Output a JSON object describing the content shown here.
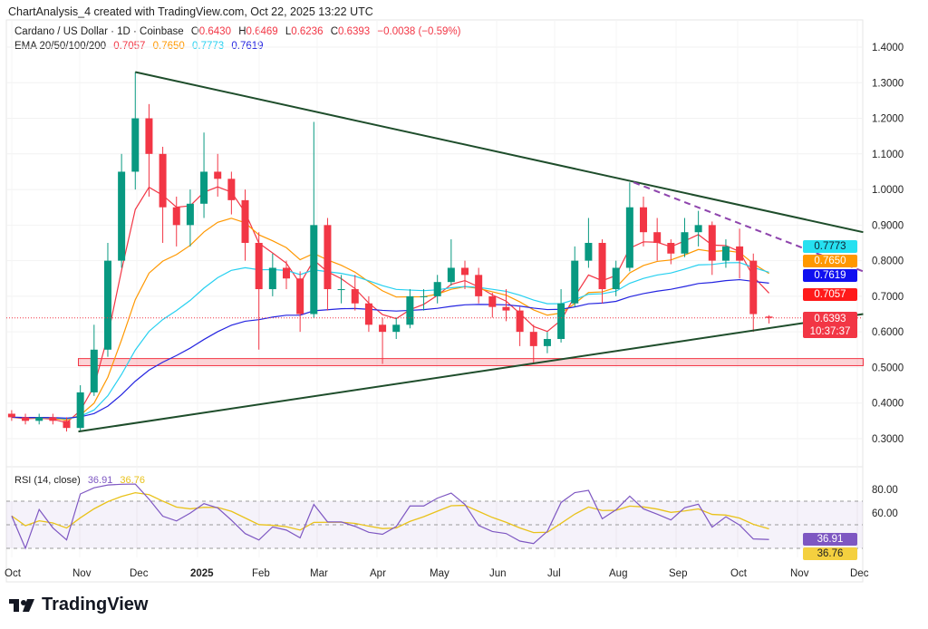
{
  "caption": "ChartAnalysis_4 created with TradingView.com, Oct 22, 2025 13:22 UTC",
  "legend": {
    "symbol": "Cardano / US Dollar · 1D · Coinbase",
    "o_label": "O",
    "o": "0.6430",
    "h_label": "H",
    "h": "0.6469",
    "l_label": "L",
    "l": "0.6236",
    "c_label": "C",
    "c": "0.6393",
    "change": "−0.0038 (−0.59%)",
    "ema_label": "EMA 20/50/100/200",
    "ema20": "0.7057",
    "ema50": "0.7650",
    "ema100": "0.7773",
    "ema200": "0.7619"
  },
  "badges": {
    "ema100": "0.7773",
    "ema50": "0.7650",
    "ema200": "0.7619",
    "ema20": "0.7057",
    "price": "0.6393",
    "countdown": "10:37:37",
    "rsi": "36.91",
    "rsi_ma": "36.76"
  },
  "rsi_legend": {
    "label": "RSI (14, close)",
    "value": "36.91",
    "ma": "36.76"
  },
  "colors": {
    "up": "#089981",
    "down": "#f23645",
    "ema20": "#f23645",
    "ema50": "#ff9800",
    "ema100": "#26d0f0",
    "ema200": "#2424e0",
    "rsi": "#7e57c2",
    "rsi_ma": "#e9c21a",
    "trend": "#1e4d2b",
    "dashed": "#8e44ad",
    "zone": "#f23645"
  },
  "footer": {
    "brand": "TradingView"
  },
  "chart_data": [
    {
      "type": "candlestick",
      "title": "Cardano / US Dollar · 1D · Coinbase",
      "ylim": [
        0.3,
        1.4
      ],
      "y_ticks": [
        "1.4000",
        "1.3000",
        "1.2000",
        "1.1000",
        "1.0000",
        "0.9000",
        "0.8000",
        "0.7000",
        "0.6000",
        "0.5000",
        "0.4000",
        "0.3000"
      ],
      "x_ticks": [
        "Oct",
        "Nov",
        "Dec",
        "2025",
        "Feb",
        "Mar",
        "Apr",
        "May",
        "Jun",
        "Jul",
        "Aug",
        "Sep",
        "Oct",
        "Nov",
        "Dec"
      ],
      "grid": true,
      "candles": [
        [
          "2024-10-01",
          0.37,
          0.38,
          0.35,
          0.36
        ],
        [
          "2024-10-08",
          0.36,
          0.37,
          0.34,
          0.35
        ],
        [
          "2024-10-15",
          0.35,
          0.37,
          0.34,
          0.36
        ],
        [
          "2024-10-22",
          0.36,
          0.37,
          0.34,
          0.35
        ],
        [
          "2024-10-29",
          0.35,
          0.36,
          0.32,
          0.33
        ],
        [
          "2024-11-05",
          0.33,
          0.45,
          0.32,
          0.43
        ],
        [
          "2024-11-12",
          0.43,
          0.62,
          0.42,
          0.55
        ],
        [
          "2024-11-19",
          0.55,
          0.85,
          0.53,
          0.8
        ],
        [
          "2024-11-26",
          0.8,
          1.1,
          0.78,
          1.05
        ],
        [
          "2024-12-03",
          1.05,
          1.33,
          1.0,
          1.2
        ],
        [
          "2024-12-10",
          1.2,
          1.24,
          0.98,
          1.1
        ],
        [
          "2024-12-17",
          1.1,
          1.12,
          0.85,
          0.95
        ],
        [
          "2024-12-24",
          0.95,
          0.98,
          0.84,
          0.9
        ],
        [
          "2024-12-31",
          0.9,
          1.0,
          0.84,
          0.96
        ],
        [
          "2025-01-07",
          0.96,
          1.16,
          0.92,
          1.05
        ],
        [
          "2025-01-14",
          1.05,
          1.1,
          0.98,
          1.03
        ],
        [
          "2025-01-21",
          1.03,
          1.05,
          0.93,
          0.97
        ],
        [
          "2025-01-28",
          0.97,
          1.0,
          0.8,
          0.85
        ],
        [
          "2025-02-04",
          0.85,
          0.88,
          0.55,
          0.72
        ],
        [
          "2025-02-11",
          0.72,
          0.82,
          0.7,
          0.78
        ],
        [
          "2025-02-18",
          0.78,
          0.8,
          0.72,
          0.75
        ],
        [
          "2025-02-25",
          0.75,
          0.77,
          0.6,
          0.65
        ],
        [
          "2025-03-04",
          0.65,
          1.19,
          0.64,
          0.9
        ],
        [
          "2025-03-11",
          0.9,
          0.92,
          0.66,
          0.72
        ],
        [
          "2025-03-18",
          0.72,
          0.76,
          0.68,
          0.72
        ],
        [
          "2025-03-25",
          0.72,
          0.76,
          0.66,
          0.68
        ],
        [
          "2025-04-01",
          0.68,
          0.7,
          0.6,
          0.62
        ],
        [
          "2025-04-08",
          0.62,
          0.64,
          0.51,
          0.6
        ],
        [
          "2025-04-15",
          0.6,
          0.64,
          0.58,
          0.62
        ],
        [
          "2025-04-22",
          0.62,
          0.72,
          0.61,
          0.7
        ],
        [
          "2025-04-29",
          0.7,
          0.72,
          0.66,
          0.7
        ],
        [
          "2025-05-06",
          0.7,
          0.76,
          0.68,
          0.74
        ],
        [
          "2025-05-13",
          0.74,
          0.86,
          0.73,
          0.78
        ],
        [
          "2025-05-20",
          0.78,
          0.8,
          0.72,
          0.76
        ],
        [
          "2025-05-27",
          0.76,
          0.78,
          0.68,
          0.7
        ],
        [
          "2025-06-03",
          0.7,
          0.71,
          0.64,
          0.67
        ],
        [
          "2025-06-10",
          0.67,
          0.72,
          0.63,
          0.66
        ],
        [
          "2025-06-17",
          0.66,
          0.67,
          0.56,
          0.6
        ],
        [
          "2025-06-24",
          0.6,
          0.62,
          0.51,
          0.56
        ],
        [
          "2025-07-01",
          0.56,
          0.6,
          0.54,
          0.58
        ],
        [
          "2025-07-08",
          0.58,
          0.72,
          0.57,
          0.68
        ],
        [
          "2025-07-15",
          0.68,
          0.84,
          0.67,
          0.8
        ],
        [
          "2025-07-22",
          0.8,
          0.92,
          0.78,
          0.85
        ],
        [
          "2025-07-29",
          0.85,
          0.86,
          0.68,
          0.72
        ],
        [
          "2025-08-05",
          0.72,
          0.8,
          0.7,
          0.78
        ],
        [
          "2025-08-12",
          0.78,
          1.02,
          0.77,
          0.95
        ],
        [
          "2025-08-19",
          0.95,
          0.98,
          0.84,
          0.88
        ],
        [
          "2025-08-26",
          0.88,
          0.92,
          0.8,
          0.85
        ],
        [
          "2025-09-02",
          0.85,
          0.86,
          0.79,
          0.82
        ],
        [
          "2025-09-09",
          0.82,
          0.92,
          0.81,
          0.88
        ],
        [
          "2025-09-16",
          0.88,
          0.94,
          0.84,
          0.9
        ],
        [
          "2025-09-23",
          0.9,
          0.91,
          0.76,
          0.8
        ],
        [
          "2025-09-30",
          0.8,
          0.86,
          0.78,
          0.84
        ],
        [
          "2025-10-07",
          0.84,
          0.89,
          0.75,
          0.8
        ],
        [
          "2025-10-14",
          0.8,
          0.82,
          0.6,
          0.65
        ],
        [
          "2025-10-22",
          0.643,
          0.6469,
          0.6236,
          0.6393
        ]
      ],
      "candle_fields": [
        "date",
        "open",
        "high",
        "low",
        "close"
      ],
      "series": [
        {
          "name": "EMA 20",
          "last": 0.7057
        },
        {
          "name": "EMA 50",
          "last": 0.765
        },
        {
          "name": "EMA 100",
          "last": 0.7773
        },
        {
          "name": "EMA 200",
          "last": 0.7619
        }
      ],
      "trendlines": [
        {
          "style": "solid",
          "from": [
            "2024-12-03",
            1.33
          ],
          "to": [
            "2025-12-09",
            0.88
          ]
        },
        {
          "style": "solid",
          "from": [
            "2024-11-04",
            0.32
          ],
          "to": [
            "2025-12-09",
            0.65
          ]
        },
        {
          "style": "dashed",
          "from": [
            "2025-08-14",
            1.02
          ],
          "to": [
            "2025-12-09",
            0.77
          ]
        }
      ],
      "zone": {
        "from": "2024-11-04",
        "to": "2025-12-09",
        "low": 0.505,
        "high": 0.525
      }
    },
    {
      "type": "line",
      "title": "RSI (14, close)",
      "ylim": [
        20,
        90
      ],
      "y_ticks": [
        "80.00",
        "60.00"
      ],
      "bands": [
        30,
        50,
        70
      ],
      "series": [
        {
          "name": "RSI",
          "last": 36.91
        },
        {
          "name": "RSI MA",
          "last": 36.76
        }
      ]
    }
  ]
}
